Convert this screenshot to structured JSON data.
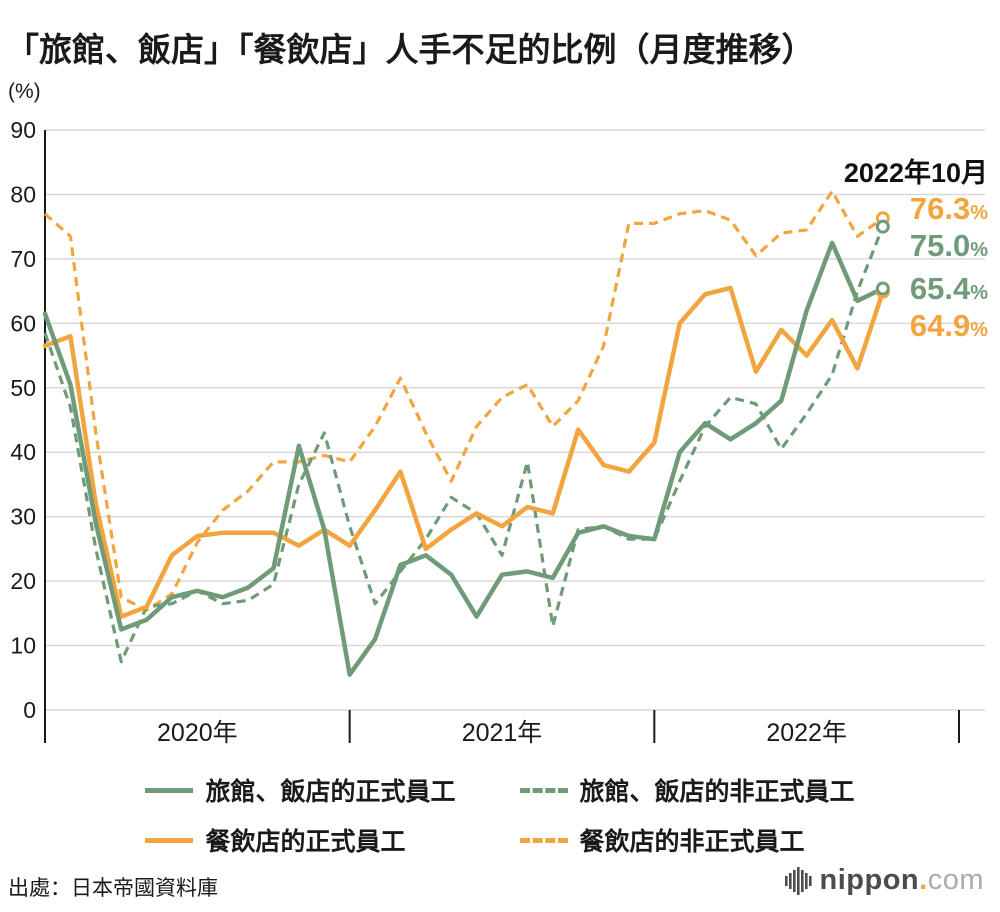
{
  "title": "「旅館、飯店」「餐飲店」人手不足的比例（月度推移）",
  "y_axis_unit": "(%)",
  "source": "出處：日本帝國資料庫",
  "logo": {
    "brand": "nippon",
    "dot": ".",
    "tld": "com"
  },
  "colors": {
    "green": "#6f9b79",
    "orange": "#f2a43e"
  },
  "chart_data": {
    "type": "line",
    "title": "「旅館、飯店」「餐飲店」人手不足的比例（月度推移）",
    "ylabel": "(%)",
    "ylim": [
      0,
      90
    ],
    "yticks": [
      0,
      10,
      20,
      30,
      40,
      50,
      60,
      70,
      80,
      90
    ],
    "grid": "horizontal",
    "legend_position": "bottom",
    "year_labels": [
      "2020年",
      "2021年",
      "2022年"
    ],
    "months": [
      "2020-01",
      "2020-02",
      "2020-03",
      "2020-04",
      "2020-05",
      "2020-06",
      "2020-07",
      "2020-08",
      "2020-09",
      "2020-10",
      "2020-11",
      "2020-12",
      "2021-01",
      "2021-02",
      "2021-03",
      "2021-04",
      "2021-05",
      "2021-06",
      "2021-07",
      "2021-08",
      "2021-09",
      "2021-10",
      "2021-11",
      "2021-12",
      "2022-01",
      "2022-02",
      "2022-03",
      "2022-04",
      "2022-05",
      "2022-06",
      "2022-07",
      "2022-08",
      "2022-09",
      "2022-10"
    ],
    "series": [
      {
        "name": "旅館、飯店的正式員工",
        "color": "#6f9b79",
        "style": "solid",
        "values": [
          61.5,
          50.5,
          29.0,
          12.5,
          14.0,
          17.5,
          18.5,
          17.5,
          19.0,
          22.0,
          41.0,
          28.0,
          5.5,
          11.0,
          22.5,
          24.0,
          21.0,
          14.5,
          21.0,
          21.5,
          20.5,
          27.5,
          28.5,
          27.0,
          26.5,
          40.0,
          44.5,
          42.0,
          44.5,
          48.0,
          62.0,
          72.5,
          63.5,
          65.4
        ]
      },
      {
        "name": "旅館、飯店的非正式員工",
        "color": "#6f9b79",
        "style": "dashed",
        "values": [
          58.5,
          47.0,
          25.0,
          7.5,
          16.0,
          16.5,
          18.5,
          16.5,
          17.0,
          19.5,
          35.0,
          43.0,
          28.5,
          16.5,
          21.5,
          26.5,
          33.0,
          30.5,
          24.0,
          38.5,
          13.0,
          28.0,
          28.5,
          26.5,
          26.5,
          35.5,
          44.0,
          48.5,
          47.5,
          40.5,
          46.0,
          52.0,
          65.0,
          75.0
        ]
      },
      {
        "name": "餐飲店的正式員工",
        "color": "#f2a43e",
        "style": "solid",
        "values": [
          56.5,
          58.0,
          32.0,
          14.5,
          16.0,
          24.0,
          27.0,
          27.5,
          27.5,
          27.5,
          25.5,
          28.0,
          25.5,
          31.0,
          37.0,
          25.0,
          28.0,
          30.5,
          28.5,
          31.5,
          30.5,
          43.5,
          38.0,
          37.0,
          41.5,
          60.0,
          64.5,
          65.5,
          52.5,
          59.0,
          55.0,
          60.5,
          53.0,
          64.9
        ]
      },
      {
        "name": "餐飲店的非正式員工",
        "color": "#f2a43e",
        "style": "dashed",
        "values": [
          77.0,
          73.5,
          43.0,
          17.5,
          15.5,
          18.0,
          26.0,
          31.0,
          34.0,
          38.5,
          38.5,
          39.5,
          38.5,
          44.0,
          51.5,
          43.0,
          35.5,
          44.0,
          48.5,
          50.5,
          44.0,
          48.0,
          56.5,
          75.5,
          75.5,
          77.0,
          77.5,
          76.0,
          70.5,
          74.0,
          74.5,
          80.5,
          73.5,
          76.3
        ]
      }
    ],
    "annotation": {
      "heading": "2022年10月",
      "labels": [
        {
          "series": "餐飲店的非正式員工",
          "value": "76.3",
          "unit": "%",
          "color": "#f2a43e"
        },
        {
          "series": "旅館、飯店的非正式員工",
          "value": "75.0",
          "unit": "%",
          "color": "#6f9b79"
        },
        {
          "series": "旅館、飯店的正式員工",
          "value": "65.4",
          "unit": "%",
          "color": "#6f9b79"
        },
        {
          "series": "餐飲店的正式員工",
          "value": "64.9",
          "unit": "%",
          "color": "#f2a43e"
        }
      ]
    }
  }
}
